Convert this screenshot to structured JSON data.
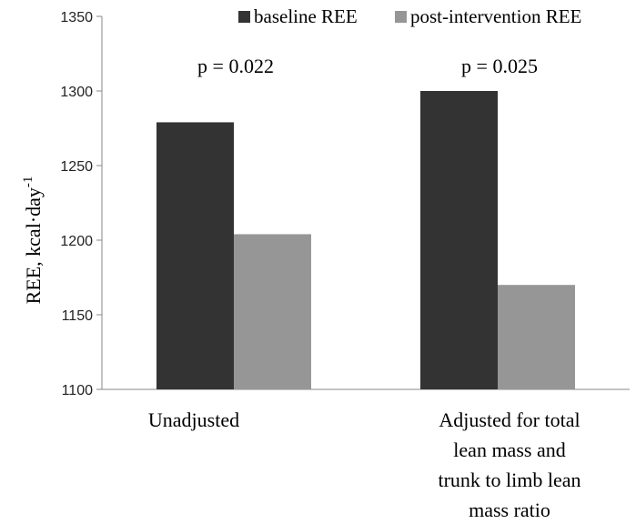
{
  "chart_data": {
    "type": "bar",
    "title": "",
    "ylabel": "REE, kcal·day",
    "ylabel_sup": "-1",
    "xlabel": "",
    "ylim": [
      1100,
      1350
    ],
    "yticks": [
      1100,
      1150,
      1200,
      1250,
      1300,
      1350
    ],
    "grid": false,
    "legend_position": "top-right",
    "categories": [
      [
        "Unadjusted"
      ],
      [
        "Adjusted for total",
        "lean mass and",
        "trunk to limb lean",
        "mass ratio"
      ]
    ],
    "series": [
      {
        "name": "baseline REE",
        "color": "#333333",
        "values": [
          1279,
          1300
        ]
      },
      {
        "name": "post-intervention REE",
        "color": "#969696",
        "values": [
          1204,
          1170
        ]
      }
    ],
    "annotations": [
      "p = 0.022",
      "p = 0.025"
    ]
  }
}
